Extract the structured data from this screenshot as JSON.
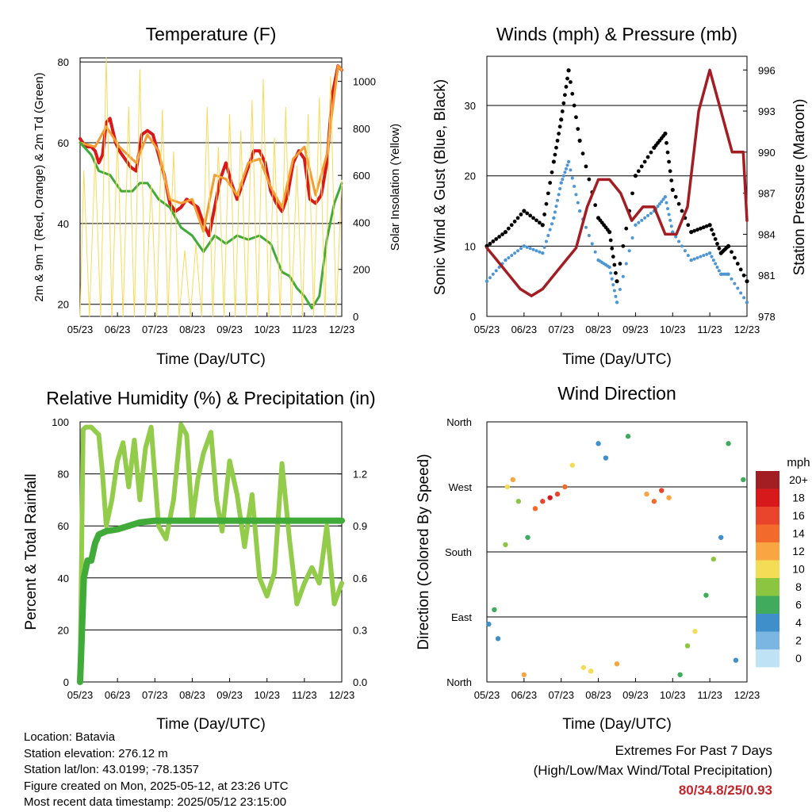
{
  "colors": {
    "red": "#d7191c",
    "orange": "#f39c34",
    "green": "#41ab3a",
    "yellow": "#fad95a",
    "black": "#000000",
    "blue": "#4d96d4",
    "maroon": "#a31e23",
    "rh_line": "#93cc4a",
    "precip": "#41ab3a",
    "extremes_text": "#c1272d"
  },
  "chart_data": [
    {
      "id": "temperature",
      "type": "line",
      "title": "Temperature (F)",
      "xlabel": "Time (Day/UTC)",
      "ylabel": "2m & 9m T (Red, Orange) & 2m Td (Green)",
      "y2label": "Solar Insolation (Yellow)",
      "x_ticks": [
        "05/23",
        "06/23",
        "07/23",
        "08/23",
        "09/23",
        "10/23",
        "11/23",
        "12/23"
      ],
      "ylim": [
        17,
        81
      ],
      "y_ticks": [
        20,
        40,
        60,
        80
      ],
      "y2lim": [
        0,
        1100
      ],
      "y2_ticks": [
        0,
        200,
        400,
        600,
        800,
        1000
      ],
      "series": [
        {
          "color": "red",
          "x": [
            0,
            0.15,
            0.3,
            0.4,
            0.5,
            0.6,
            0.7,
            0.8,
            0.95,
            1.05,
            1.2,
            1.35,
            1.5,
            1.65,
            1.8,
            1.95,
            2.1,
            2.25,
            2.4,
            2.55,
            2.7,
            2.85,
            3.0,
            3.15,
            3.3,
            3.45,
            3.6,
            3.75,
            3.9,
            4.05,
            4.2,
            4.35,
            4.5,
            4.65,
            4.8,
            4.95,
            5.1,
            5.25,
            5.4,
            5.55,
            5.7,
            5.85,
            6.0,
            6.15,
            6.3,
            6.45,
            6.6,
            6.75,
            6.9,
            7.0
          ],
          "values": [
            61,
            59,
            59,
            58,
            55,
            57,
            65,
            66,
            60,
            58,
            56,
            54,
            53,
            62,
            63,
            62,
            57,
            52,
            45,
            43,
            44,
            46,
            45,
            44,
            40,
            37,
            44,
            51,
            55,
            50,
            46,
            50,
            54,
            58,
            58,
            55,
            48,
            45,
            43,
            47,
            55,
            58,
            56,
            46,
            45,
            47,
            55,
            72,
            79,
            78
          ]
        },
        {
          "color": "orange",
          "x": [
            0,
            0.4,
            0.7,
            1.05,
            1.5,
            1.8,
            2.1,
            2.4,
            2.7,
            3.0,
            3.3,
            3.6,
            3.9,
            4.2,
            4.5,
            4.8,
            5.1,
            5.4,
            5.7,
            6.0,
            6.3,
            6.6,
            6.9,
            7.0
          ],
          "values": [
            60,
            59,
            64,
            59,
            55,
            62,
            58,
            46,
            45,
            46,
            38,
            52,
            51,
            47,
            55,
            56,
            49,
            44,
            56,
            59,
            47,
            57,
            79,
            78
          ]
        },
        {
          "color": "green",
          "x": [
            0,
            0.3,
            0.5,
            0.8,
            1.1,
            1.4,
            1.6,
            1.8,
            2.1,
            2.4,
            2.7,
            3.0,
            3.3,
            3.6,
            3.9,
            4.2,
            4.5,
            4.8,
            5.1,
            5.4,
            5.6,
            5.8,
            6.0,
            6.2,
            6.4,
            6.6,
            6.8,
            7.0
          ],
          "values": [
            60,
            57,
            53,
            52,
            48,
            48,
            50,
            50,
            46,
            44,
            39,
            37,
            33,
            37,
            35,
            37,
            36,
            37,
            35,
            28,
            27,
            24,
            22,
            19,
            22,
            36,
            45,
            50
          ]
        },
        {
          "color": "yellow",
          "axis": "y2",
          "x": [
            0,
            0.1,
            0.25,
            0.4,
            0.55,
            0.7,
            0.85,
            1.0,
            1.15,
            1.3,
            1.45,
            1.6,
            1.75,
            1.9,
            2.05,
            2.2,
            2.35,
            2.5,
            2.65,
            2.8,
            2.95,
            3.1,
            3.25,
            3.4,
            3.55,
            3.7,
            3.85,
            4.0,
            4.15,
            4.3,
            4.45,
            4.6,
            4.75,
            4.9,
            5.05,
            5.2,
            5.35,
            5.5,
            5.65,
            5.8,
            5.95,
            6.1,
            6.25,
            6.4,
            6.55,
            6.7,
            6.85,
            7.0
          ],
          "values": [
            0,
            620,
            0,
            680,
            0,
            1100,
            0,
            750,
            0,
            890,
            0,
            1050,
            0,
            560,
            0,
            880,
            0,
            700,
            0,
            280,
            0,
            310,
            0,
            890,
            0,
            720,
            0,
            860,
            0,
            790,
            0,
            920,
            0,
            1010,
            0,
            760,
            0,
            890,
            0,
            640,
            0,
            860,
            0,
            930,
            0,
            1020,
            0,
            580
          ]
        }
      ]
    },
    {
      "id": "winds",
      "type": "scatter",
      "title": "Winds (mph) & Pressure (mb)",
      "xlabel": "Time (Day/UTC)",
      "ylabel": "Sonic Wind & Gust (Blue, Black)",
      "y2label": "Station Pressure (Maroon)",
      "x_ticks": [
        "05/23",
        "06/23",
        "07/23",
        "08/23",
        "09/23",
        "10/23",
        "11/23",
        "12/23"
      ],
      "ylim": [
        0,
        37
      ],
      "y_ticks": [
        0,
        10,
        20,
        30
      ],
      "y2lim": [
        978,
        997
      ],
      "y2_ticks": [
        978,
        981,
        984,
        987,
        990,
        993,
        996
      ],
      "series": [
        {
          "color": "black",
          "x": [
            0,
            0.5,
            1.0,
            1.5,
            1.8,
            2.0,
            2.2,
            2.5,
            3.0,
            3.3,
            3.5,
            4.0,
            4.5,
            4.8,
            5.0,
            5.5,
            6.0,
            6.3,
            6.5,
            7.0
          ],
          "values": [
            10,
            12,
            15,
            13,
            22,
            28,
            35,
            25,
            14,
            12,
            5,
            20,
            24,
            26,
            18,
            12,
            13,
            9,
            10,
            5
          ]
        },
        {
          "color": "blue",
          "x": [
            0,
            0.5,
            1.0,
            1.5,
            1.8,
            2.0,
            2.2,
            2.5,
            3.0,
            3.3,
            3.5,
            4.0,
            4.5,
            4.8,
            5.0,
            5.5,
            6.0,
            6.3,
            6.5,
            7.0
          ],
          "values": [
            5,
            8,
            10,
            9,
            14,
            19,
            22,
            15,
            8,
            7,
            2,
            13,
            15,
            17,
            12,
            8,
            9,
            6,
            6,
            2
          ]
        },
        {
          "color": "maroon",
          "axis": "y2",
          "x": [
            0,
            0.3,
            0.6,
            0.9,
            1.2,
            1.5,
            1.8,
            2.1,
            2.4,
            2.7,
            3.0,
            3.3,
            3.6,
            3.9,
            4.2,
            4.5,
            4.8,
            5.1,
            5.4,
            5.7,
            6.0,
            6.3,
            6.6,
            6.9,
            7.0
          ],
          "values": [
            983,
            982,
            981,
            980,
            979.5,
            980,
            981,
            982,
            983,
            986,
            988,
            988,
            987,
            985,
            986,
            986,
            984,
            984,
            986,
            993,
            996,
            993,
            990,
            990,
            985
          ]
        }
      ]
    },
    {
      "id": "humidity",
      "type": "line",
      "title": "Relative Humidity (%) & Precipitation (in)",
      "xlabel": "Time (Day/UTC)",
      "ylabel": "Percent & Total Rainfall",
      "x_ticks": [
        "05/23",
        "06/23",
        "07/23",
        "08/23",
        "09/23",
        "10/23",
        "11/23",
        "12/23"
      ],
      "ylim": [
        0,
        100
      ],
      "y_ticks": [
        0,
        20,
        40,
        60,
        80,
        100
      ],
      "y2lim": [
        0,
        1.5
      ],
      "y2_ticks": [
        "0.0",
        "0.3",
        "0.6",
        "0.9",
        "1.2"
      ],
      "series": [
        {
          "color": "rh_line",
          "x": [
            0,
            0.08,
            0.15,
            0.3,
            0.5,
            0.6,
            0.7,
            0.85,
            1.0,
            1.15,
            1.3,
            1.45,
            1.6,
            1.75,
            1.9,
            2.1,
            2.3,
            2.5,
            2.7,
            2.85,
            3.0,
            3.15,
            3.3,
            3.5,
            3.65,
            3.8,
            4.0,
            4.2,
            4.4,
            4.6,
            4.8,
            5.0,
            5.2,
            5.4,
            5.6,
            5.8,
            6.0,
            6.2,
            6.4,
            6.6,
            6.8,
            7.0
          ],
          "values": [
            2,
            97,
            98,
            98,
            95,
            80,
            60,
            70,
            85,
            92,
            75,
            93,
            70,
            90,
            98,
            60,
            55,
            70,
            99,
            95,
            62,
            78,
            88,
            96,
            70,
            58,
            85,
            72,
            52,
            72,
            40,
            33,
            42,
            84,
            55,
            30,
            38,
            44,
            38,
            60,
            30,
            38
          ]
        },
        {
          "color": "precip",
          "axis": "y2",
          "x": [
            0,
            0.05,
            0.1,
            0.2,
            0.3,
            0.4,
            0.5,
            0.7,
            1.0,
            1.3,
            1.6,
            2.0,
            3.0,
            4.0,
            5.0,
            6.0,
            7.0
          ],
          "values": [
            0,
            0.3,
            0.6,
            0.7,
            0.7,
            0.8,
            0.85,
            0.87,
            0.88,
            0.9,
            0.92,
            0.93,
            0.93,
            0.93,
            0.93,
            0.93,
            0.93
          ]
        }
      ]
    },
    {
      "id": "wind_direction",
      "type": "scatter",
      "title": "Wind Direction",
      "xlabel": "Time (Day/UTC)",
      "ylabel": "Direction (Colored By Speed)",
      "x_ticks": [
        "05/23",
        "06/23",
        "07/23",
        "08/23",
        "09/23",
        "10/23",
        "11/23",
        "12/23"
      ],
      "y_ticks": [
        "North",
        "East",
        "South",
        "West",
        "North"
      ],
      "ylim": [
        0,
        360
      ],
      "legend": {
        "title": "mph",
        "position": "right",
        "labels": [
          "20+",
          "18",
          "16",
          "14",
          "12",
          "10",
          "8",
          "6",
          "4",
          "2",
          "0"
        ],
        "colors": [
          "#a31e23",
          "#d7191c",
          "#e8452c",
          "#f26b2d",
          "#f9a541",
          "#f4dc57",
          "#8cc640",
          "#41ab5d",
          "#3f8fca",
          "#7bb6e3",
          "#bfe3f5"
        ]
      },
      "points": [
        {
          "x": 0.05,
          "dir": 80,
          "speed": 4
        },
        {
          "x": 0.2,
          "dir": 100,
          "speed": 6
        },
        {
          "x": 0.3,
          "dir": 60,
          "speed": 4
        },
        {
          "x": 0.5,
          "dir": 190,
          "speed": 8
        },
        {
          "x": 0.55,
          "dir": 270,
          "speed": 10
        },
        {
          "x": 0.7,
          "dir": 280,
          "speed": 12
        },
        {
          "x": 0.85,
          "dir": 250,
          "speed": 8
        },
        {
          "x": 1.0,
          "dir": 10,
          "speed": 12
        },
        {
          "x": 1.1,
          "dir": 200,
          "speed": 6
        },
        {
          "x": 1.3,
          "dir": 240,
          "speed": 14
        },
        {
          "x": 1.5,
          "dir": 250,
          "speed": 16
        },
        {
          "x": 1.7,
          "dir": 255,
          "speed": 18
        },
        {
          "x": 1.9,
          "dir": 260,
          "speed": 16
        },
        {
          "x": 2.1,
          "dir": 270,
          "speed": 14
        },
        {
          "x": 2.3,
          "dir": 300,
          "speed": 10
        },
        {
          "x": 2.6,
          "dir": 20,
          "speed": 10
        },
        {
          "x": 2.8,
          "dir": 15,
          "speed": 10
        },
        {
          "x": 3.0,
          "dir": 330,
          "speed": 4
        },
        {
          "x": 3.2,
          "dir": 310,
          "speed": 4
        },
        {
          "x": 3.5,
          "dir": 25,
          "speed": 12
        },
        {
          "x": 3.8,
          "dir": 340,
          "speed": 6
        },
        {
          "x": 4.3,
          "dir": 260,
          "speed": 12
        },
        {
          "x": 4.5,
          "dir": 250,
          "speed": 14
        },
        {
          "x": 4.7,
          "dir": 265,
          "speed": 16
        },
        {
          "x": 4.9,
          "dir": 255,
          "speed": 12
        },
        {
          "x": 5.2,
          "dir": 10,
          "speed": 6
        },
        {
          "x": 5.4,
          "dir": 50,
          "speed": 8
        },
        {
          "x": 5.6,
          "dir": 70,
          "speed": 10
        },
        {
          "x": 5.9,
          "dir": 120,
          "speed": 6
        },
        {
          "x": 6.1,
          "dir": 170,
          "speed": 8
        },
        {
          "x": 6.3,
          "dir": 200,
          "speed": 4
        },
        {
          "x": 6.5,
          "dir": 330,
          "speed": 6
        },
        {
          "x": 6.7,
          "dir": 30,
          "speed": 4
        },
        {
          "x": 6.9,
          "dir": 280,
          "speed": 6
        }
      ]
    }
  ],
  "info": {
    "location": "Location: Batavia",
    "elevation": "Station elevation: 276.12 m",
    "latlon": "Station lat/lon: 43.0199; -78.1357",
    "created": "Figure created on Mon, 2025-05-12, at 23:26 UTC",
    "recent": "Most recent data timestamp: 2025/05/12 23:15:00"
  },
  "extremes": {
    "line1": "Extremes For Past 7 Days",
    "line2": "(High/Low/Max Wind/Total Precipitation)",
    "values": "80/34.8/25/0.93"
  }
}
